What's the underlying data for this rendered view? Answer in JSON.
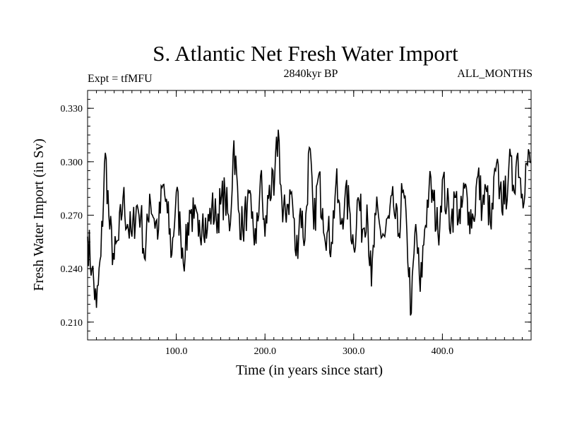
{
  "chart_data": {
    "type": "line",
    "title": "S. Atlantic Net Fresh Water Import",
    "subtitle": "2840kyr BP",
    "left_note": "Expt = tfMFU",
    "right_note": "ALL_MONTHS",
    "xlabel": "Time (in years since start)",
    "ylabel": "Fresh Water Import (in Sv)",
    "xlim": [
      0,
      500
    ],
    "ylim": [
      0.2,
      0.34
    ],
    "x_ticks": [
      100,
      200,
      300,
      400
    ],
    "x_tick_labels": [
      "100.0",
      "200.0",
      "300.0",
      "400.0"
    ],
    "y_ticks": [
      0.21,
      0.24,
      0.27,
      0.3,
      0.33
    ],
    "y_tick_labels": [
      "0.210",
      "0.240",
      "0.270",
      "0.300",
      "0.330"
    ],
    "series": [
      {
        "name": "net fresh water import",
        "x_start": 0,
        "x_step": 5,
        "values": [
          0.258,
          0.24,
          0.218,
          0.247,
          0.305,
          0.262,
          0.245,
          0.256,
          0.28,
          0.265,
          0.258,
          0.275,
          0.27,
          0.245,
          0.282,
          0.268,
          0.262,
          0.287,
          0.271,
          0.248,
          0.283,
          0.259,
          0.247,
          0.273,
          0.268,
          0.258,
          0.271,
          0.262,
          0.274,
          0.268,
          0.276,
          0.282,
          0.261,
          0.312,
          0.273,
          0.262,
          0.276,
          0.268,
          0.254,
          0.292,
          0.258,
          0.287,
          0.281,
          0.318,
          0.266,
          0.276,
          0.283,
          0.247,
          0.274,
          0.256,
          0.308,
          0.262,
          0.291,
          0.274,
          0.26,
          0.255,
          0.288,
          0.265,
          0.279,
          0.275,
          0.252,
          0.28,
          0.262,
          0.276,
          0.23,
          0.27,
          0.262,
          0.258,
          0.268,
          0.275,
          0.258,
          0.283,
          0.26,
          0.215,
          0.265,
          0.227,
          0.262,
          0.286,
          0.278,
          0.26,
          0.29,
          0.275,
          0.268,
          0.28,
          0.265,
          0.285,
          0.272,
          0.268,
          0.292,
          0.275,
          0.283,
          0.262,
          0.295,
          0.285,
          0.276,
          0.298,
          0.287,
          0.305,
          0.282,
          0.299
        ]
      }
    ]
  }
}
